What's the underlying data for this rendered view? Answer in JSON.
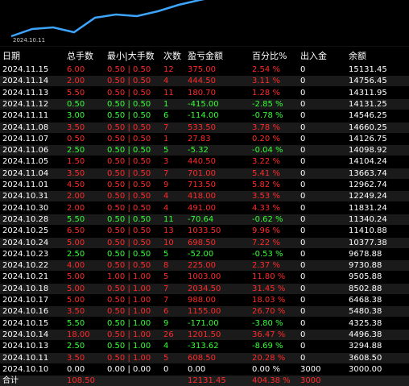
{
  "chart": {
    "date_label": "2024.10.11",
    "line_color": "#3da5ff"
  },
  "headers": {
    "date": "日期",
    "lots": "总手数",
    "minmax": "最小|大手数",
    "count": "次数",
    "pl": "盈亏金额",
    "pct": "百分比%",
    "dep": "出入金",
    "bal": "余额"
  },
  "rows": [
    {
      "date": "2024.11.15",
      "lots": "6.00",
      "minmax": "0.50 | 0.50",
      "count": "12",
      "pl": "375.00",
      "pct": "2.54 %",
      "dep": "0",
      "bal": "15131.45",
      "color": "red"
    },
    {
      "date": "2024.11.14",
      "lots": "2.00",
      "minmax": "0.50 | 0.50",
      "count": "4",
      "pl": "444.50",
      "pct": "3.11 %",
      "dep": "0",
      "bal": "14756.45",
      "color": "red"
    },
    {
      "date": "2024.11.13",
      "lots": "5.50",
      "minmax": "0.50 | 0.50",
      "count": "11",
      "pl": "180.70",
      "pct": "1.28 %",
      "dep": "0",
      "bal": "14311.95",
      "color": "red"
    },
    {
      "date": "2024.11.12",
      "lots": "0.50",
      "minmax": "0.50 | 0.50",
      "count": "1",
      "pl": "-415.00",
      "pct": "-2.85 %",
      "dep": "0",
      "bal": "14131.25",
      "color": "green"
    },
    {
      "date": "2024.11.11",
      "lots": "3.00",
      "minmax": "0.50 | 0.50",
      "count": "6",
      "pl": "-114.00",
      "pct": "-0.78 %",
      "dep": "0",
      "bal": "14546.25",
      "color": "green"
    },
    {
      "date": "2024.11.08",
      "lots": "3.50",
      "minmax": "0.50 | 0.50",
      "count": "7",
      "pl": "533.50",
      "pct": "3.78 %",
      "dep": "0",
      "bal": "14660.25",
      "color": "red"
    },
    {
      "date": "2024.11.07",
      "lots": "0.50",
      "minmax": "0.50 | 0.50",
      "count": "1",
      "pl": "27.83",
      "pct": "0.20 %",
      "dep": "0",
      "bal": "14126.75",
      "color": "red"
    },
    {
      "date": "2024.11.06",
      "lots": "2.50",
      "minmax": "0.50 | 0.50",
      "count": "5",
      "pl": "-5.32",
      "pct": "-0.04 %",
      "dep": "0",
      "bal": "14098.92",
      "color": "green"
    },
    {
      "date": "2024.11.05",
      "lots": "1.50",
      "minmax": "0.50 | 0.50",
      "count": "3",
      "pl": "440.50",
      "pct": "3.22 %",
      "dep": "0",
      "bal": "14104.24",
      "color": "red"
    },
    {
      "date": "2024.11.04",
      "lots": "3.50",
      "minmax": "0.50 | 0.50",
      "count": "7",
      "pl": "701.00",
      "pct": "5.41 %",
      "dep": "0",
      "bal": "13663.74",
      "color": "red"
    },
    {
      "date": "2024.11.01",
      "lots": "4.50",
      "minmax": "0.50 | 0.50",
      "count": "9",
      "pl": "713.50",
      "pct": "5.82 %",
      "dep": "0",
      "bal": "12962.74",
      "color": "red"
    },
    {
      "date": "2024.10.31",
      "lots": "2.00",
      "minmax": "0.50 | 0.50",
      "count": "4",
      "pl": "418.00",
      "pct": "3.53 %",
      "dep": "0",
      "bal": "12249.24",
      "color": "red"
    },
    {
      "date": "2024.10.30",
      "lots": "2.00",
      "minmax": "0.50 | 0.50",
      "count": "4",
      "pl": "491.00",
      "pct": "4.33 %",
      "dep": "0",
      "bal": "11831.24",
      "color": "red"
    },
    {
      "date": "2024.10.28",
      "lots": "5.50",
      "minmax": "0.50 | 0.50",
      "count": "11",
      "pl": "-70.64",
      "pct": "-0.62 %",
      "dep": "0",
      "bal": "11340.24",
      "color": "green"
    },
    {
      "date": "2024.10.25",
      "lots": "6.50",
      "minmax": "0.50 | 0.50",
      "count": "13",
      "pl": "1033.50",
      "pct": "9.96 %",
      "dep": "0",
      "bal": "11410.88",
      "color": "red"
    },
    {
      "date": "2024.10.24",
      "lots": "5.00",
      "minmax": "0.50 | 0.50",
      "count": "10",
      "pl": "698.50",
      "pct": "7.22 %",
      "dep": "0",
      "bal": "10377.38",
      "color": "red"
    },
    {
      "date": "2024.10.23",
      "lots": "2.50",
      "minmax": "0.50 | 0.50",
      "count": "5",
      "pl": "-52.00",
      "pct": "-0.53 %",
      "dep": "0",
      "bal": "9678.88",
      "color": "green"
    },
    {
      "date": "2024.10.22",
      "lots": "4.00",
      "minmax": "0.50 | 0.50",
      "count": "8",
      "pl": "225.00",
      "pct": "2.37 %",
      "dep": "0",
      "bal": "9730.88",
      "color": "red"
    },
    {
      "date": "2024.10.21",
      "lots": "5.00",
      "minmax": "1.00 | 1.00",
      "count": "5",
      "pl": "1003.00",
      "pct": "11.80 %",
      "dep": "0",
      "bal": "9505.88",
      "color": "red"
    },
    {
      "date": "2024.10.18",
      "lots": "5.00",
      "minmax": "0.50 | 1.00",
      "count": "7",
      "pl": "2034.50",
      "pct": "31.45 %",
      "dep": "0",
      "bal": "8502.88",
      "color": "red"
    },
    {
      "date": "2024.10.17",
      "lots": "5.00",
      "minmax": "0.50 | 1.00",
      "count": "7",
      "pl": "988.00",
      "pct": "18.03 %",
      "dep": "0",
      "bal": "6468.38",
      "color": "red"
    },
    {
      "date": "2024.10.16",
      "lots": "3.50",
      "minmax": "0.50 | 1.00",
      "count": "6",
      "pl": "1155.00",
      "pct": "26.70 %",
      "dep": "0",
      "bal": "5480.38",
      "color": "red"
    },
    {
      "date": "2024.10.15",
      "lots": "5.50",
      "minmax": "0.50 | 1.00",
      "count": "9",
      "pl": "-171.00",
      "pct": "-3.80 %",
      "dep": "0",
      "bal": "4325.38",
      "color": "green"
    },
    {
      "date": "2024.10.14",
      "lots": "18.00",
      "minmax": "0.50 | 1.00",
      "count": "26",
      "pl": "1201.50",
      "pct": "36.47 %",
      "dep": "0",
      "bal": "4496.38",
      "color": "red"
    },
    {
      "date": "2024.10.13",
      "lots": "2.50",
      "minmax": "0.50 | 1.00",
      "count": "4",
      "pl": "-313.62",
      "pct": "-8.69 %",
      "dep": "0",
      "bal": "3294.88",
      "color": "green"
    },
    {
      "date": "2024.10.11",
      "lots": "3.50",
      "minmax": "0.50 | 1.00",
      "count": "5",
      "pl": "608.50",
      "pct": "20.28 %",
      "dep": "0",
      "bal": "3608.50",
      "color": "red"
    },
    {
      "date": "2024.10.10",
      "lots": "0.00",
      "minmax": "0.00 | 0.00",
      "count": "0",
      "pl": "0.00",
      "pct": "0.00 %",
      "dep": "3000",
      "bal": "3000.00",
      "color": "white"
    }
  ],
  "total": {
    "label": "合计",
    "lots": "108.50",
    "pl": "12131.45",
    "pct": "404.38 %",
    "dep": "3000"
  }
}
